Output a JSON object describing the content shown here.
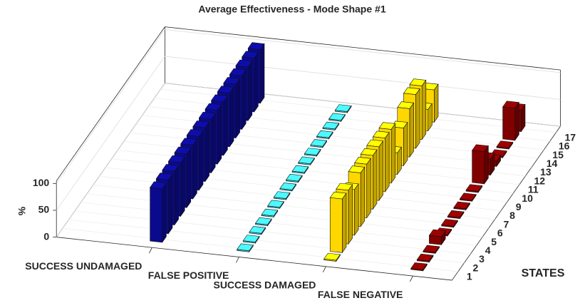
{
  "chart_data": {
    "type": "bar3",
    "title": "Average Effectiveness - Mode Shape #1",
    "zlabel": "%",
    "ylabel": "STATES",
    "states": [
      1,
      2,
      3,
      4,
      5,
      6,
      7,
      8,
      9,
      10,
      11,
      12,
      13,
      14,
      15,
      16,
      17
    ],
    "zlim": [
      0,
      105
    ],
    "zticks": [
      0,
      50,
      100
    ],
    "grid": true,
    "series": [
      {
        "name": "SUCCESS UNDAMAGED",
        "color": "#0a0a8c",
        "values": [
          100,
          100,
          100,
          100,
          100,
          100,
          100,
          100,
          100,
          100,
          100,
          100,
          100,
          100,
          100,
          100,
          100
        ]
      },
      {
        "name": "FALSE POSITIVE",
        "color": "#3cc8dc",
        "values": [
          2,
          2,
          2,
          2,
          2,
          2,
          2,
          2,
          2,
          2,
          2,
          2,
          2,
          2,
          2,
          2,
          2
        ]
      },
      {
        "name": "SUCCESS DAMAGED",
        "color": "#ffd700",
        "values": [
          2,
          100,
          100,
          85,
          100,
          100,
          100,
          100,
          100,
          100,
          40,
          70,
          90,
          100,
          100,
          40,
          60
        ]
      },
      {
        "name": "FALSE NEGATIVE",
        "color": "#800000",
        "values": [
          2,
          2,
          2,
          15,
          2,
          2,
          2,
          2,
          2,
          2,
          60,
          30,
          10,
          2,
          2,
          60,
          40
        ]
      }
    ]
  }
}
